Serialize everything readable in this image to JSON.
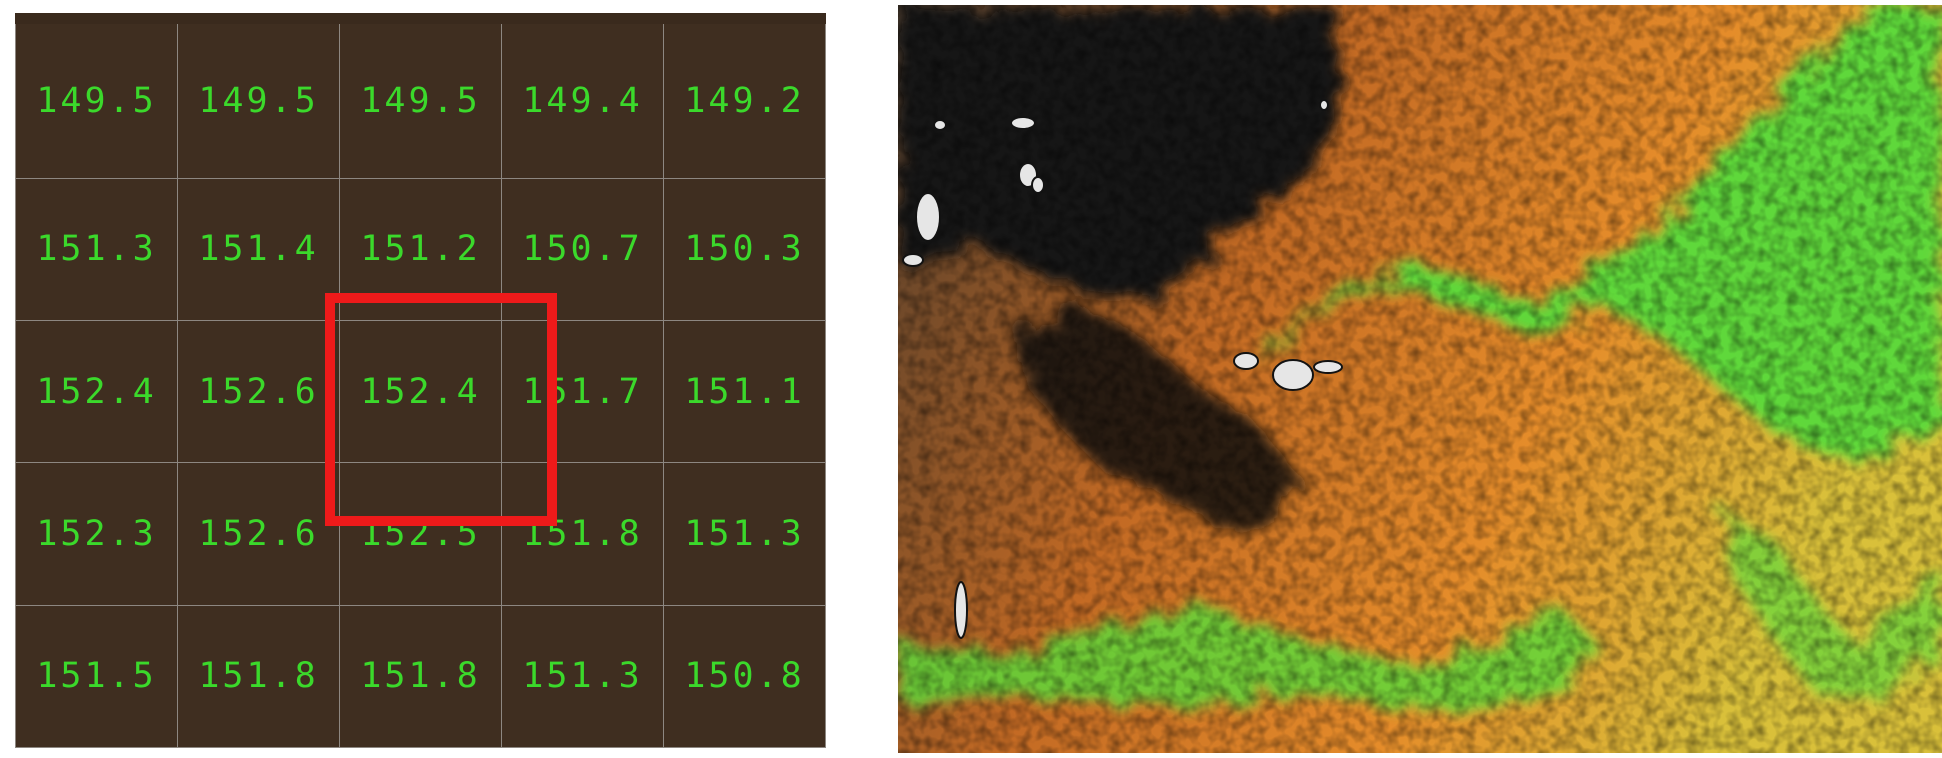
{
  "elevation_grid": {
    "rows": [
      [
        "149.5",
        "149.5",
        "149.5",
        "149.4",
        "149.2"
      ],
      [
        "151.3",
        "151.4",
        "151.2",
        "150.7",
        "150.3"
      ],
      [
        "152.4",
        "152.6",
        "152.4",
        "151.7",
        "151.1"
      ],
      [
        "152.3",
        "152.6",
        "152.5",
        "151.8",
        "151.3"
      ],
      [
        "151.5",
        "151.8",
        "151.8",
        "151.3",
        "150.8"
      ]
    ],
    "highlighted_cell": {
      "row": 2,
      "col": 2
    },
    "colors": {
      "cell_background": "#3f2e20",
      "value_text": "#3bd92b",
      "grid_lines": "#8d8781",
      "highlight": "#ee1a1a"
    }
  },
  "elevation_map": {
    "color_ramp": [
      "#121212",
      "#4a3a2c",
      "#c36a24",
      "#e58c2a",
      "#d9c03a",
      "#5fd83a",
      "#2fbf6a"
    ],
    "nodata_color": "#e6e6e6"
  }
}
